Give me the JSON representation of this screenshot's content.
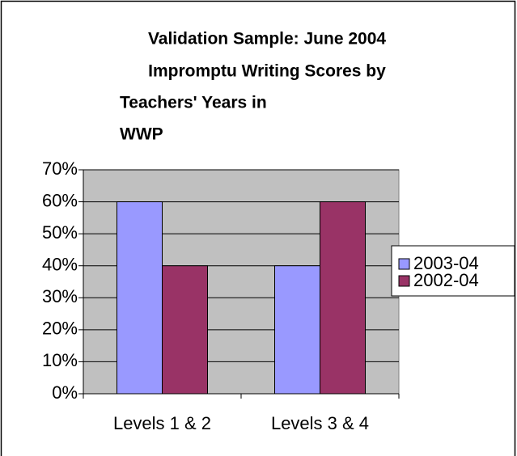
{
  "chart_data": {
    "type": "bar",
    "title": [
      "Validation Sample: June 2004",
      "Impromptu Writing Scores by",
      "Teachers' Years in",
      "WWP"
    ],
    "categories": [
      "Levels 1 & 2",
      "Levels 3 & 4"
    ],
    "series": [
      {
        "name": "2003-04",
        "color": "#9999ff",
        "values": [
          60,
          40
        ]
      },
      {
        "name": "2002-04",
        "color": "#993366",
        "values": [
          40,
          60
        ]
      }
    ],
    "ylim": [
      0,
      70
    ],
    "yticks": [
      {
        "value": 0,
        "label": "0%"
      },
      {
        "value": 10,
        "label": "10%"
      },
      {
        "value": 20,
        "label": "20%"
      },
      {
        "value": 30,
        "label": "30%"
      },
      {
        "value": 40,
        "label": "40%"
      },
      {
        "value": 50,
        "label": "50%"
      },
      {
        "value": 60,
        "label": "60%"
      },
      {
        "value": 70,
        "label": "70%"
      }
    ],
    "grid": true,
    "legend": "right"
  }
}
